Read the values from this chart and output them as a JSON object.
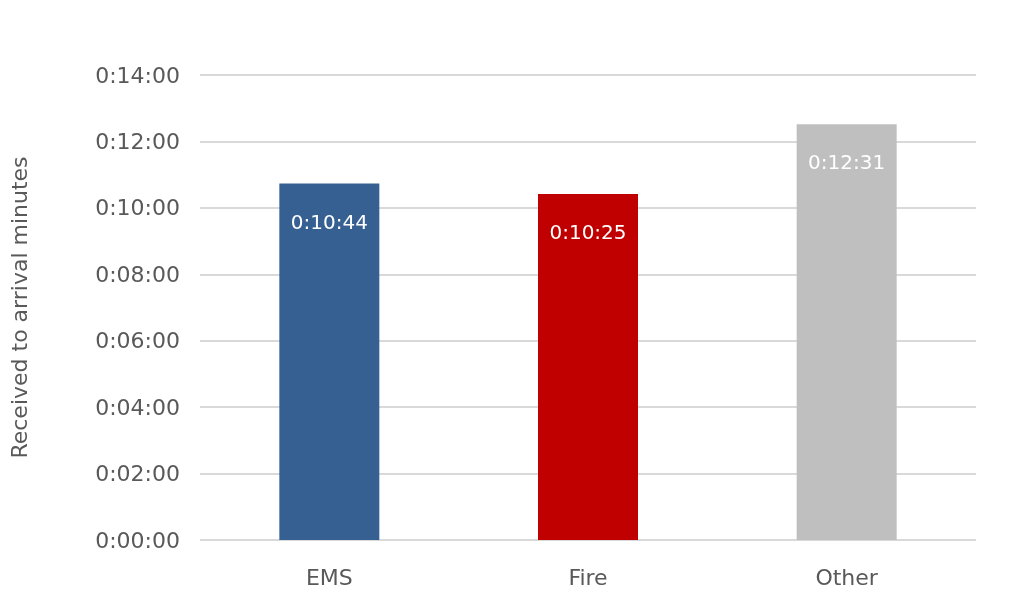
{
  "chart_data": {
    "type": "bar",
    "ylabel": "Received to arrival minutes",
    "categories": [
      "EMS",
      "Fire",
      "Other"
    ],
    "values": [
      10.733,
      10.417,
      12.517
    ],
    "value_labels": [
      "0:10:44",
      "0:10:25",
      "0:12:31"
    ],
    "colors": [
      "#366092",
      "#c00000",
      "#bfbfbf"
    ],
    "ylim": [
      0,
      14
    ],
    "yticks": [
      {
        "value": 0,
        "label": "0:00:00"
      },
      {
        "value": 2,
        "label": "0:02:00"
      },
      {
        "value": 4,
        "label": "0:04:00"
      },
      {
        "value": 6,
        "label": "0:06:00"
      },
      {
        "value": 8,
        "label": "0:08:00"
      },
      {
        "value": 10,
        "label": "0:10:00"
      },
      {
        "value": 12,
        "label": "0:12:00"
      },
      {
        "value": 14,
        "label": "0:14:00"
      }
    ],
    "grid": true
  }
}
